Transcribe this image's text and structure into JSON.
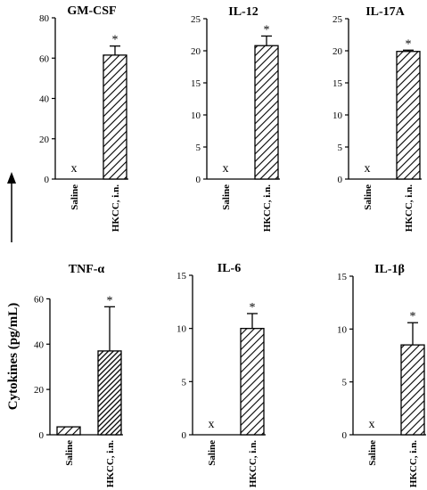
{
  "figure": {
    "ylabel": "Cytokines (pg/mL)",
    "hatch_color": "#000000",
    "bar_fill": "#ffffff"
  },
  "chart_data": [
    {
      "type": "bar",
      "title": "GM-CSF",
      "categories": [
        "Saline",
        "HKCC, i.n."
      ],
      "values": [
        0,
        61.5
      ],
      "errors": [
        0,
        4.5
      ],
      "ylim": [
        0,
        80
      ],
      "yticks": [
        0,
        20,
        40,
        60,
        80
      ],
      "markers": [
        "x",
        "*"
      ]
    },
    {
      "type": "bar",
      "title": "IL-12",
      "categories": [
        "Saline",
        "HKCC, i.n."
      ],
      "values": [
        0,
        20.8
      ],
      "errors": [
        0,
        1.5
      ],
      "ylim": [
        0,
        25
      ],
      "yticks": [
        0,
        5,
        10,
        15,
        20,
        25
      ],
      "markers": [
        "x",
        "*"
      ]
    },
    {
      "type": "bar",
      "title": "IL-17A",
      "categories": [
        "Saline",
        "HKCC, i.n."
      ],
      "values": [
        0,
        19.9
      ],
      "errors": [
        0,
        0.2
      ],
      "ylim": [
        0,
        25
      ],
      "yticks": [
        0,
        5,
        10,
        15,
        20,
        25
      ],
      "markers": [
        "x",
        "*"
      ]
    },
    {
      "type": "bar",
      "title": "TNF-α",
      "categories": [
        "Saline",
        "HKCC, i.n."
      ],
      "values": [
        3.5,
        37
      ],
      "errors": [
        0,
        19.5
      ],
      "ylim": [
        0,
        70
      ],
      "yticks": [
        0,
        20,
        40,
        60
      ],
      "markers": [
        "",
        "*"
      ]
    },
    {
      "type": "bar",
      "title": "IL-6",
      "categories": [
        "Saline",
        "HKCC, i.n."
      ],
      "values": [
        0,
        10
      ],
      "errors": [
        0,
        1.4
      ],
      "ylim": [
        0,
        15
      ],
      "yticks": [
        0,
        5,
        10,
        15
      ],
      "markers": [
        "x",
        "*"
      ]
    },
    {
      "type": "bar",
      "title": "IL-1β",
      "categories": [
        "Saline",
        "HKCC, i.n."
      ],
      "values": [
        0,
        8.5
      ],
      "errors": [
        0,
        2.1
      ],
      "ylim": [
        0,
        15
      ],
      "yticks": [
        0,
        5,
        10,
        15
      ],
      "markers": [
        "x",
        "*"
      ]
    }
  ]
}
